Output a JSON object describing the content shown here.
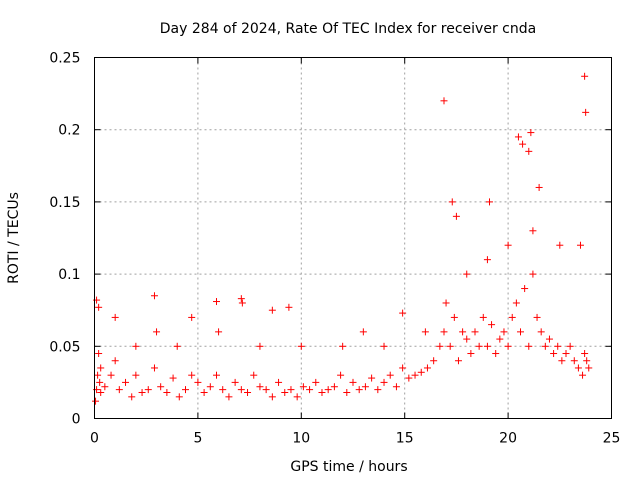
{
  "chart_data": {
    "type": "scatter",
    "title": "Day 284 of 2024, Rate Of TEC Index for receiver cnda",
    "xlabel": "GPS time / hours",
    "ylabel": "ROTI / TECUs",
    "xlim": [
      0,
      25
    ],
    "ylim": [
      0,
      0.25
    ],
    "xticks": [
      0,
      5,
      10,
      15,
      20,
      25
    ],
    "xtick_labels": [
      "0",
      "5",
      "10",
      "15",
      "20",
      "25"
    ],
    "yticks": [
      0,
      0.05,
      0.1,
      0.15,
      0.2,
      0.25
    ],
    "ytick_labels": [
      "0",
      "0.05",
      "0.1",
      "0.15",
      "0.2",
      "0.25"
    ],
    "grid": true,
    "marker": "+",
    "series": [
      {
        "name": "ROTI",
        "color": "#ff0000",
        "x": [
          0.05,
          0.1,
          0.15,
          0.2,
          0.25,
          0.3,
          0.5,
          0.8,
          1.0,
          1.2,
          1.5,
          1.8,
          2.0,
          2.3,
          2.6,
          2.9,
          3.2,
          3.5,
          3.8,
          4.1,
          4.4,
          4.7,
          5.0,
          5.3,
          5.6,
          5.9,
          6.2,
          6.5,
          6.8,
          7.1,
          7.4,
          7.7,
          8.0,
          8.3,
          8.6,
          8.9,
          9.2,
          9.5,
          9.8,
          10.1,
          10.4,
          10.7,
          11.0,
          11.3,
          11.6,
          11.9,
          12.2,
          12.5,
          12.8,
          13.1,
          13.4,
          13.7,
          14.0,
          14.3,
          14.6,
          14.9,
          15.2,
          15.5,
          15.8,
          16.1,
          16.4,
          16.7,
          16.9,
          17.0,
          17.2,
          17.4,
          17.6,
          17.8,
          18.0,
          18.2,
          18.4,
          18.6,
          18.8,
          19.0,
          19.2,
          19.4,
          19.6,
          19.8,
          20.0,
          20.2,
          20.4,
          20.6,
          20.8,
          21.0,
          21.2,
          21.4,
          21.6,
          21.8,
          22.0,
          22.2,
          22.4,
          22.6,
          22.8,
          23.0,
          23.2,
          23.4,
          23.6,
          23.7,
          23.8,
          23.9,
          0.1,
          0.2,
          2.9,
          4.7,
          5.9,
          7.1,
          7.15,
          8.6,
          9.4,
          14.9,
          16.9,
          17.3,
          17.5,
          19.1,
          20.5,
          20.7,
          21.0,
          21.1,
          21.2,
          23.7,
          23.75,
          0.3,
          1.0,
          2.0,
          3.0,
          4.0,
          6.0,
          8.0,
          10.0,
          12.0,
          13.0,
          14.0,
          16.0,
          18.0,
          19.0,
          20.0,
          21.5,
          22.5,
          23.5
        ],
        "y": [
          0.012,
          0.02,
          0.03,
          0.045,
          0.025,
          0.018,
          0.022,
          0.03,
          0.04,
          0.02,
          0.025,
          0.015,
          0.03,
          0.018,
          0.02,
          0.035,
          0.022,
          0.018,
          0.028,
          0.015,
          0.02,
          0.03,
          0.025,
          0.018,
          0.022,
          0.03,
          0.02,
          0.015,
          0.025,
          0.02,
          0.018,
          0.03,
          0.022,
          0.02,
          0.015,
          0.025,
          0.018,
          0.02,
          0.015,
          0.022,
          0.02,
          0.025,
          0.018,
          0.02,
          0.022,
          0.03,
          0.018,
          0.025,
          0.02,
          0.022,
          0.028,
          0.02,
          0.025,
          0.03,
          0.022,
          0.035,
          0.028,
          0.03,
          0.032,
          0.035,
          0.04,
          0.05,
          0.06,
          0.08,
          0.05,
          0.07,
          0.04,
          0.06,
          0.055,
          0.045,
          0.06,
          0.05,
          0.07,
          0.05,
          0.065,
          0.045,
          0.055,
          0.06,
          0.05,
          0.07,
          0.08,
          0.06,
          0.09,
          0.05,
          0.1,
          0.07,
          0.06,
          0.05,
          0.055,
          0.045,
          0.05,
          0.04,
          0.045,
          0.05,
          0.04,
          0.035,
          0.03,
          0.045,
          0.04,
          0.035,
          0.082,
          0.077,
          0.085,
          0.07,
          0.081,
          0.083,
          0.08,
          0.075,
          0.077,
          0.073,
          0.22,
          0.15,
          0.14,
          0.15,
          0.195,
          0.19,
          0.185,
          0.198,
          0.13,
          0.237,
          0.212,
          0.035,
          0.07,
          0.05,
          0.06,
          0.05,
          0.06,
          0.05,
          0.05,
          0.05,
          0.06,
          0.05,
          0.06,
          0.1,
          0.11,
          0.12,
          0.16,
          0.12,
          0.12
        ]
      }
    ]
  }
}
